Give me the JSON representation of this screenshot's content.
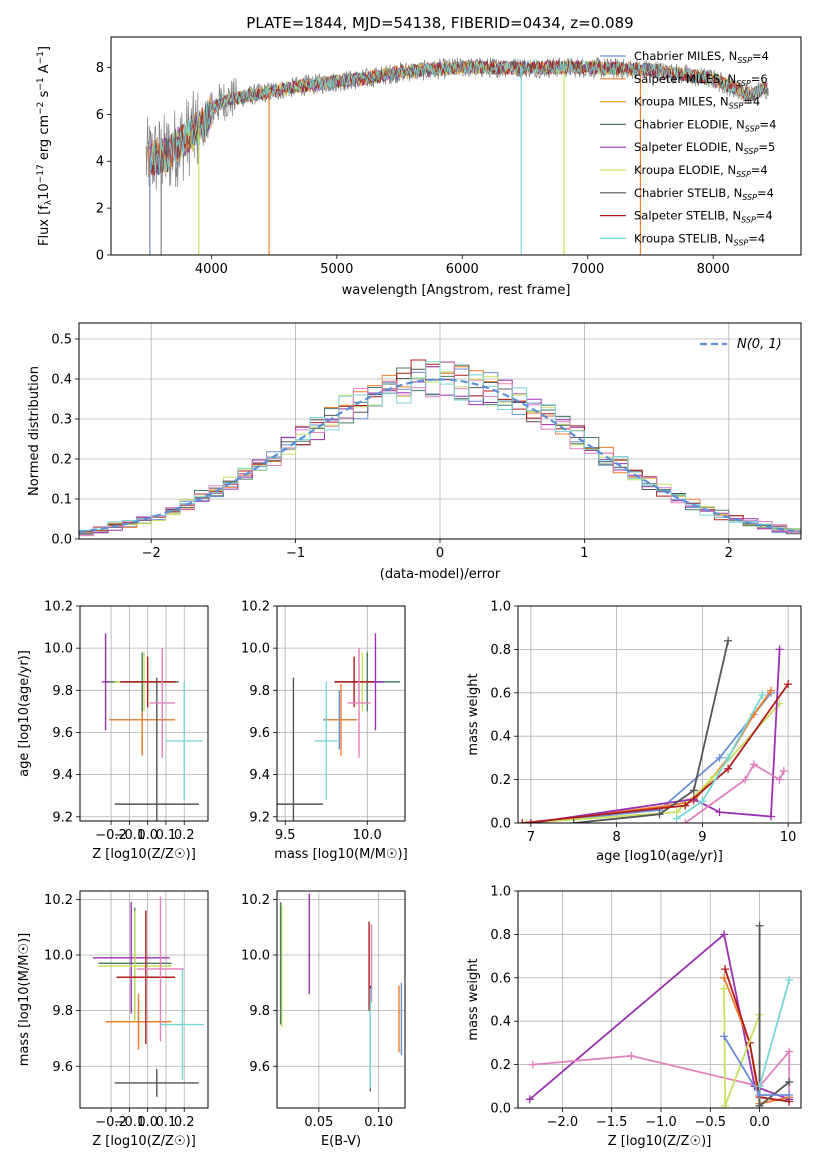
{
  "figure_title": "PLATE=1844, MJD=54138, FIBERID=0434, z=0.089",
  "colors": {
    "chabrier_miles": "#6b8fd6",
    "salpeter_miles": "#ee7f2d",
    "kroupa_miles": "#f0a040",
    "chabrier_elodie": "#4a7a6a",
    "salpeter_elodie": "#9b30b0",
    "kroupa_elodie": "#c8e060",
    "chabrier_stelib": "#555555",
    "salpeter_stelib": "#b01c1c",
    "kroupa_stelib": "#78d6d8",
    "data": "#808080",
    "normal": "#5b8fd6"
  },
  "chart_data": [
    {
      "id": "spectrum",
      "type": "line",
      "title": "PLATE=1844, MJD=54138, FIBERID=0434, z=0.089",
      "xlabel": "wavelength [Angstrom, rest frame]",
      "ylabel": "Flux [f_λ 10^-17 erg cm^-2 s^-1 A^-1]",
      "xlim": [
        3200,
        8700
      ],
      "ylim": [
        0,
        9.3
      ],
      "xticks": [
        4000,
        5000,
        6000,
        7000,
        8000
      ],
      "yticks": [
        0,
        2,
        4,
        6,
        8
      ],
      "legend_position": "right",
      "legend": [
        {
          "label": "Chabrier MILES, N_SSP=4",
          "base": "Chabrier MILES, N",
          "sub": "SSP",
          "tail": "=4",
          "color": "#6b8fd6"
        },
        {
          "label": "Salpeter MILES, N_SSP=6",
          "base": "Salpeter MILES, N",
          "sub": "SSP",
          "tail": "=6",
          "color": "#ee7f2d"
        },
        {
          "label": "Kroupa MILES, N_SSP=4",
          "base": "Kroupa MILES, N",
          "sub": "SSP",
          "tail": "=4",
          "color": "#f0a040"
        },
        {
          "label": "Chabrier ELODIE, N_SSP=4",
          "base": "Chabrier ELODIE, N",
          "sub": "SSP",
          "tail": "=4",
          "color": "#4a7a6a"
        },
        {
          "label": "Salpeter ELODIE, N_SSP=5",
          "base": "Salpeter ELODIE, N",
          "sub": "SSP",
          "tail": "=5",
          "color": "#9b30b0"
        },
        {
          "label": "Kroupa ELODIE, N_SSP=4",
          "base": "Kroupa ELODIE, N",
          "sub": "SSP",
          "tail": "=4",
          "color": "#c8e060"
        },
        {
          "label": "Chabrier STELIB, N_SSP=4",
          "base": "Chabrier STELIB, N",
          "sub": "SSP",
          "tail": "=4",
          "color": "#555555"
        },
        {
          "label": "Salpeter STELIB, N_SSP=4",
          "base": "Salpeter STELIB, N",
          "sub": "SSP",
          "tail": "=4",
          "color": "#b01c1c"
        },
        {
          "label": "Kroupa STELIB, N_SSP=4",
          "base": "Kroupa STELIB, N",
          "sub": "SSP",
          "tail": "=4",
          "color": "#78d6d8"
        }
      ],
      "continuum": [
        [
          3500,
          4.1
        ],
        [
          3650,
          4.3
        ],
        [
          3800,
          5.0
        ],
        [
          3950,
          5.6
        ],
        [
          4000,
          6.2
        ],
        [
          4100,
          6.6
        ],
        [
          4300,
          6.8
        ],
        [
          4500,
          7.0
        ],
        [
          4700,
          7.2
        ],
        [
          5000,
          7.4
        ],
        [
          5200,
          7.5
        ],
        [
          5500,
          7.8
        ],
        [
          6000,
          8.0
        ],
        [
          6500,
          8.0
        ],
        [
          7000,
          8.0
        ],
        [
          7500,
          7.9
        ],
        [
          8000,
          7.5
        ],
        [
          8300,
          6.8
        ],
        [
          8400,
          7.1
        ]
      ],
      "spikes": [
        [
          3510,
          0
        ],
        [
          3600,
          0
        ],
        [
          3900,
          0
        ],
        [
          4460,
          0
        ],
        [
          6470,
          0
        ],
        [
          6810,
          0
        ],
        [
          7420,
          0
        ]
      ]
    },
    {
      "id": "residuals",
      "type": "histogram",
      "xlabel": "(data-model)/error",
      "ylabel": "Normed distribution",
      "xlim": [
        -2.5,
        2.5
      ],
      "ylim": [
        0,
        0.54
      ],
      "xticks": [
        -2,
        -1,
        0,
        1,
        2
      ],
      "yticks": [
        0.0,
        0.1,
        0.2,
        0.3,
        0.4,
        0.5
      ],
      "legend_position": "top-right",
      "legend_label": "N(0, 1)",
      "bin_width": 0.1,
      "normal_curve": {
        "mean": 0,
        "sigma": 1
      }
    },
    {
      "id": "age_vs_Z",
      "type": "scatter",
      "xlabel": "Z [log10(Z/Z☉)]",
      "ylabel": "age [log10(age/yr)]",
      "xlim": [
        -0.37,
        0.33
      ],
      "ylim": [
        9.18,
        10.2
      ],
      "xticks": [
        -0.2,
        -0.1,
        0.0,
        0.1,
        0.2
      ],
      "yticks": [
        9.2,
        9.4,
        9.6,
        9.8,
        10.0,
        10.2
      ],
      "points": [
        {
          "x": -0.03,
          "y": 9.66,
          "xerr": 0.18,
          "yerr": 0.16,
          "color": "#6b8fd6"
        },
        {
          "x": -0.03,
          "y": 9.66,
          "xerr": 0.18,
          "yerr": 0.17,
          "color": "#ee7f2d"
        },
        {
          "x": -0.03,
          "y": 9.84,
          "xerr": 0.2,
          "yerr": 0.14,
          "color": "#4a7a6a"
        },
        {
          "x": -0.23,
          "y": 9.84,
          "xerr": 0.02,
          "yerr": 0.23,
          "color": "#9b30b0"
        },
        {
          "x": -0.02,
          "y": 9.84,
          "xerr": 0.16,
          "yerr": 0.14,
          "color": "#c8e060"
        },
        {
          "x": 0.05,
          "y": 9.26,
          "xerr": 0.23,
          "yerr": 0.6,
          "color": "#555555"
        },
        {
          "x": 0.0,
          "y": 9.84,
          "xerr": 0.15,
          "yerr": 0.12,
          "color": "#b01c1c"
        },
        {
          "x": 0.08,
          "y": 9.74,
          "xerr": 0.07,
          "yerr": 0.26,
          "color": "#e080c0"
        },
        {
          "x": 0.2,
          "y": 9.56,
          "xerr": 0.1,
          "yerr": 0.28,
          "color": "#78d6d8"
        }
      ]
    },
    {
      "id": "age_vs_mass",
      "type": "scatter",
      "xlabel": "mass [log10(M/M☉)]",
      "ylabel": "",
      "xlim": [
        9.45,
        10.23
      ],
      "ylim": [
        9.18,
        10.2
      ],
      "xticks": [
        9.5,
        10.0
      ],
      "yticks": [
        9.2,
        9.4,
        9.6,
        9.8,
        10.0,
        10.2
      ],
      "points": [
        {
          "x": 9.83,
          "y": 9.66,
          "xerr": 0.1,
          "yerr": 0.14,
          "color": "#6b8fd6"
        },
        {
          "x": 9.84,
          "y": 9.66,
          "xerr": 0.1,
          "yerr": 0.17,
          "color": "#ee7f2d"
        },
        {
          "x": 10.0,
          "y": 9.84,
          "xerr": 0.2,
          "yerr": 0.14,
          "color": "#4a7a6a"
        },
        {
          "x": 10.05,
          "y": 9.84,
          "xerr": 0.05,
          "yerr": 0.23,
          "color": "#9b30b0"
        },
        {
          "x": 9.97,
          "y": 9.84,
          "xerr": 0.05,
          "yerr": 0.14,
          "color": "#c8e060"
        },
        {
          "x": 9.55,
          "y": 9.26,
          "xerr": 0.18,
          "yerr": 0.6,
          "color": "#555555"
        },
        {
          "x": 9.92,
          "y": 9.84,
          "xerr": 0.12,
          "yerr": 0.12,
          "color": "#b01c1c"
        },
        {
          "x": 9.95,
          "y": 9.74,
          "xerr": 0.07,
          "yerr": 0.26,
          "color": "#e080c0"
        },
        {
          "x": 9.75,
          "y": 9.56,
          "xerr": 0.07,
          "yerr": 0.28,
          "color": "#78d6d8"
        }
      ]
    },
    {
      "id": "mass_weight_vs_age",
      "type": "line",
      "xlabel": "age [log10(age/yr)]",
      "ylabel": "mass weight",
      "xlim": [
        6.85,
        10.15
      ],
      "ylim": [
        0,
        1.0
      ],
      "xticks": [
        7,
        8,
        9,
        10
      ],
      "yticks": [
        0.0,
        0.2,
        0.4,
        0.6,
        0.8,
        1.0
      ],
      "series": [
        {
          "color": "#6b8fd6",
          "x": [
            7.0,
            8.5,
            9.2,
            9.8
          ],
          "y": [
            0.0,
            0.06,
            0.3,
            0.6
          ]
        },
        {
          "color": "#ee7f2d",
          "x": [
            7.0,
            8.6,
            8.9,
            9.3,
            9.6,
            9.8
          ],
          "y": [
            0.0,
            0.08,
            0.1,
            0.3,
            0.5,
            0.61
          ]
        },
        {
          "color": "#c8e060",
          "x": [
            6.95,
            8.7,
            9.1,
            9.9
          ],
          "y": [
            0.0,
            0.05,
            0.2,
            0.55
          ]
        },
        {
          "color": "#9b30b0",
          "x": [
            7.0,
            8.9,
            9.2,
            9.8,
            9.9
          ],
          "y": [
            0.0,
            0.11,
            0.05,
            0.03,
            0.8
          ]
        },
        {
          "color": "#555555",
          "x": [
            7.5,
            8.5,
            8.9,
            9.3
          ],
          "y": [
            0.0,
            0.04,
            0.15,
            0.84
          ]
        },
        {
          "color": "#b01c1c",
          "x": [
            6.9,
            8.8,
            9.3,
            10.0
          ],
          "y": [
            0.0,
            0.08,
            0.25,
            0.64
          ]
        },
        {
          "color": "#e080c0",
          "x": [
            8.8,
            9.5,
            9.6,
            9.9,
            9.95
          ],
          "y": [
            0.0,
            0.2,
            0.27,
            0.2,
            0.24
          ]
        },
        {
          "color": "#78d6d8",
          "x": [
            8.7,
            9.0,
            9.3,
            9.7
          ],
          "y": [
            0.02,
            0.1,
            0.3,
            0.59
          ]
        }
      ]
    },
    {
      "id": "mass_vs_Z",
      "type": "scatter",
      "xlabel": "Z [log10(Z/Z☉)]",
      "ylabel": "mass [log10(M/M☉)]",
      "xlim": [
        -0.37,
        0.33
      ],
      "ylim": [
        9.45,
        10.23
      ],
      "xticks": [
        -0.2,
        -0.1,
        0.0,
        0.1,
        0.2
      ],
      "yticks": [
        9.6,
        9.8,
        10.0,
        10.2
      ],
      "points": [
        {
          "x": -0.05,
          "y": 9.76,
          "xerr": 0.18,
          "yerr": 0.08,
          "color": "#6b8fd6"
        },
        {
          "x": -0.05,
          "y": 9.76,
          "xerr": 0.18,
          "yerr": 0.1,
          "color": "#ee7f2d"
        },
        {
          "x": -0.07,
          "y": 9.97,
          "xerr": 0.2,
          "yerr": 0.2,
          "color": "#4a7a6a"
        },
        {
          "x": -0.09,
          "y": 9.99,
          "xerr": 0.21,
          "yerr": 0.2,
          "color": "#9b30b0"
        },
        {
          "x": -0.07,
          "y": 9.96,
          "xerr": 0.2,
          "yerr": 0.2,
          "color": "#c8e060"
        },
        {
          "x": 0.05,
          "y": 9.54,
          "xerr": 0.23,
          "yerr": 0.05,
          "color": "#555555"
        },
        {
          "x": -0.01,
          "y": 9.92,
          "xerr": 0.16,
          "yerr": 0.24,
          "color": "#b01c1c"
        },
        {
          "x": 0.07,
          "y": 9.95,
          "xerr": 0.13,
          "yerr": 0.26,
          "color": "#e080c0"
        },
        {
          "x": 0.19,
          "y": 9.75,
          "xerr": 0.12,
          "yerr": 0.2,
          "color": "#78d6d8"
        }
      ]
    },
    {
      "id": "mass_vs_ebv",
      "type": "scatter",
      "xlabel": "E(B-V)",
      "ylabel": "",
      "xlim": [
        0.015,
        0.122
      ],
      "ylim": [
        9.45,
        10.23
      ],
      "xticks": [
        0.05,
        0.1
      ],
      "yticks": [
        9.6,
        9.8,
        10.0,
        10.2
      ],
      "points": [
        {
          "x": 0.019,
          "y": 9.96,
          "yerr": 0.22,
          "color": "#c8e060"
        },
        {
          "x": 0.018,
          "y": 9.97,
          "yerr": 0.22,
          "color": "#4a7a6a"
        },
        {
          "x": 0.042,
          "y": 10.04,
          "yerr": 0.18,
          "color": "#9b30b0"
        },
        {
          "x": 0.092,
          "y": 9.96,
          "yerr": 0.16,
          "color": "#b01c1c"
        },
        {
          "x": 0.094,
          "y": 9.97,
          "yerr": 0.14,
          "color": "#e080c0"
        },
        {
          "x": 0.093,
          "y": 9.7,
          "yerr": 0.19,
          "color": "#555555"
        },
        {
          "x": 0.093,
          "y": 9.7,
          "yerr": 0.18,
          "color": "#78d6d8"
        },
        {
          "x": 0.117,
          "y": 9.77,
          "yerr": 0.12,
          "color": "#ee7f2d"
        },
        {
          "x": 0.119,
          "y": 9.77,
          "yerr": 0.13,
          "color": "#6b8fd6"
        }
      ]
    },
    {
      "id": "mass_weight_vs_Z",
      "type": "line",
      "xlabel": "Z [log10(Z/Z☉)]",
      "ylabel": "mass weight",
      "xlim": [
        -2.45,
        0.42
      ],
      "ylim": [
        0,
        1.0
      ],
      "xticks": [
        -2.0,
        -1.5,
        -1.0,
        -0.5,
        0.0
      ],
      "yticks": [
        0.0,
        0.2,
        0.4,
        0.6,
        0.8,
        1.0
      ],
      "series": [
        {
          "color": "#9b30b0",
          "x": [
            -2.33,
            -0.36,
            -0.05,
            0.3
          ],
          "y": [
            0.04,
            0.8,
            0.1,
            0.04
          ]
        },
        {
          "color": "#e080c0",
          "x": [
            -2.3,
            -1.3,
            0.0,
            0.3,
            0.3
          ],
          "y": [
            0.2,
            0.24,
            0.1,
            0.26,
            0.05
          ]
        },
        {
          "color": "#ee7f2d",
          "x": [
            -0.36,
            -0.1,
            0.0,
            0.3
          ],
          "y": [
            0.6,
            0.3,
            0.02,
            0.05
          ]
        },
        {
          "color": "#b01c1c",
          "x": [
            -0.35,
            -0.1,
            0.0,
            0.3
          ],
          "y": [
            0.64,
            0.3,
            0.05,
            0.03
          ]
        },
        {
          "color": "#c8e060",
          "x": [
            -0.36,
            -0.35,
            0.0,
            0.0
          ],
          "y": [
            0.55,
            0.01,
            0.43,
            0.01
          ]
        },
        {
          "color": "#555555",
          "x": [
            0.0,
            0.0,
            0.3
          ],
          "y": [
            0.84,
            0.01,
            0.12
          ]
        },
        {
          "color": "#78d6d8",
          "x": [
            0.0,
            0.3
          ],
          "y": [
            0.1,
            0.59
          ]
        },
        {
          "color": "#6b8fd6",
          "x": [
            -0.36,
            0.0,
            0.3
          ],
          "y": [
            0.33,
            0.06,
            0.06
          ]
        }
      ]
    }
  ]
}
